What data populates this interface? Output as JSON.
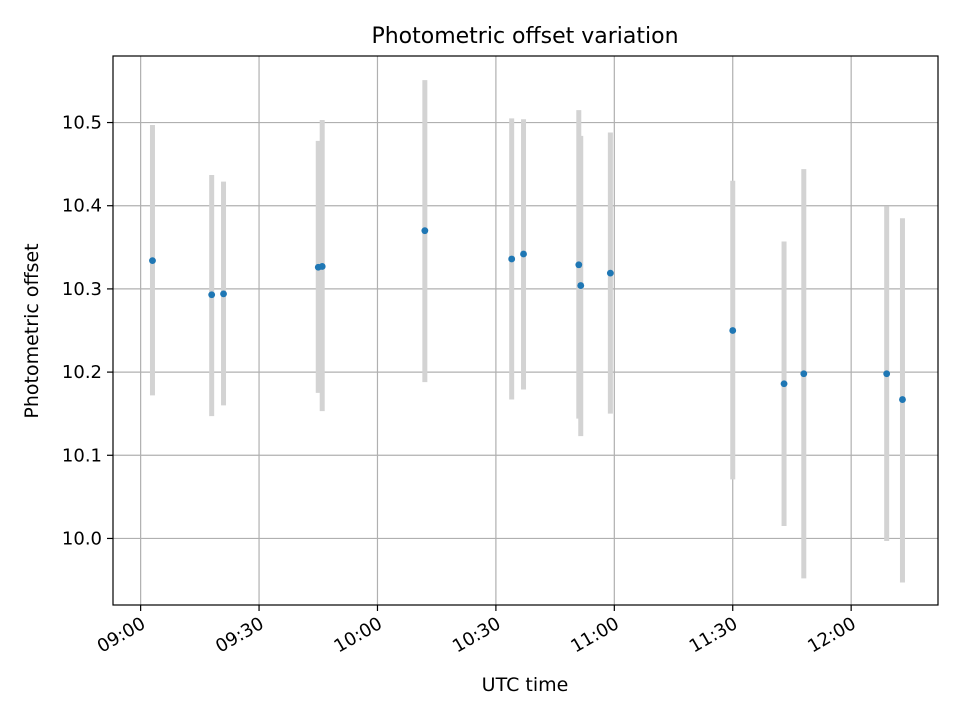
{
  "chart_data": {
    "type": "scatter",
    "title": "Photometric offset variation",
    "xlabel": "UTC time",
    "ylabel": "Photometric offset",
    "x_ticks": [
      "09:00",
      "09:30",
      "10:00",
      "10:30",
      "11:00",
      "11:30",
      "12:00"
    ],
    "y_ticks": [
      "10.0",
      "10.1",
      "10.2",
      "10.3",
      "10.4",
      "10.5"
    ],
    "xlim": [
      "08:53",
      "12:22"
    ],
    "ylim": [
      9.92,
      10.58
    ],
    "grid": true,
    "point_color": "#1f77b4",
    "errorbar_color": "#d3d3d3",
    "points": [
      {
        "time": "09:03",
        "value": 10.334,
        "low": 10.172,
        "high": 10.497
      },
      {
        "time": "09:18",
        "value": 10.293,
        "low": 10.147,
        "high": 10.437
      },
      {
        "time": "09:21",
        "value": 10.294,
        "low": 10.16,
        "high": 10.429
      },
      {
        "time": "09:45",
        "value": 10.326,
        "low": 10.175,
        "high": 10.478
      },
      {
        "time": "09:46",
        "value": 10.327,
        "low": 10.153,
        "high": 10.503
      },
      {
        "time": "10:12",
        "value": 10.37,
        "low": 10.188,
        "high": 10.551
      },
      {
        "time": "10:34",
        "value": 10.336,
        "low": 10.167,
        "high": 10.505
      },
      {
        "time": "10:37",
        "value": 10.342,
        "low": 10.179,
        "high": 10.504
      },
      {
        "time": "10:51",
        "value": 10.329,
        "low": 10.144,
        "high": 10.515
      },
      {
        "time": "10:51.5",
        "value": 10.304,
        "low": 10.123,
        "high": 10.484
      },
      {
        "time": "10:59",
        "value": 10.319,
        "low": 10.15,
        "high": 10.488
      },
      {
        "time": "11:30",
        "value": 10.25,
        "low": 10.071,
        "high": 10.43
      },
      {
        "time": "11:43",
        "value": 10.186,
        "low": 10.015,
        "high": 10.357
      },
      {
        "time": "11:48",
        "value": 10.198,
        "low": 9.952,
        "high": 10.444
      },
      {
        "time": "12:09",
        "value": 10.198,
        "low": 9.997,
        "high": 10.399
      },
      {
        "time": "12:13",
        "value": 10.167,
        "low": 9.947,
        "high": 10.385
      }
    ]
  }
}
